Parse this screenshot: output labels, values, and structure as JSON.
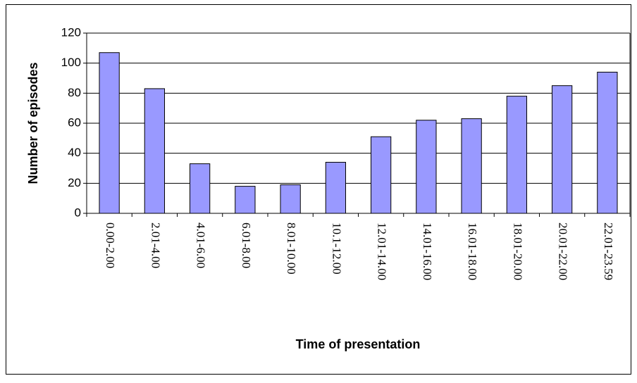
{
  "chart_data": {
    "type": "bar",
    "x_label": "Time of presentation",
    "y_label": "Number of episodes",
    "categories": [
      "0.00-2.00",
      "2.01-4.00",
      "4.01-6.00",
      "6.01-8.00",
      "8.01-10.00",
      "10.1-12.00",
      "12.01-14.00",
      "14.01-16.00",
      "16.01-18.00",
      "18.01-20.00",
      "20.01-22.00",
      "22.01-23.59"
    ],
    "values": [
      107,
      83,
      33,
      18,
      19,
      34,
      51,
      62,
      63,
      78,
      85,
      94
    ],
    "color": "#9999ff",
    "ylim": [
      0,
      120
    ],
    "yticks": [
      0,
      20,
      40,
      60,
      80,
      100,
      120
    ],
    "grid": true
  }
}
